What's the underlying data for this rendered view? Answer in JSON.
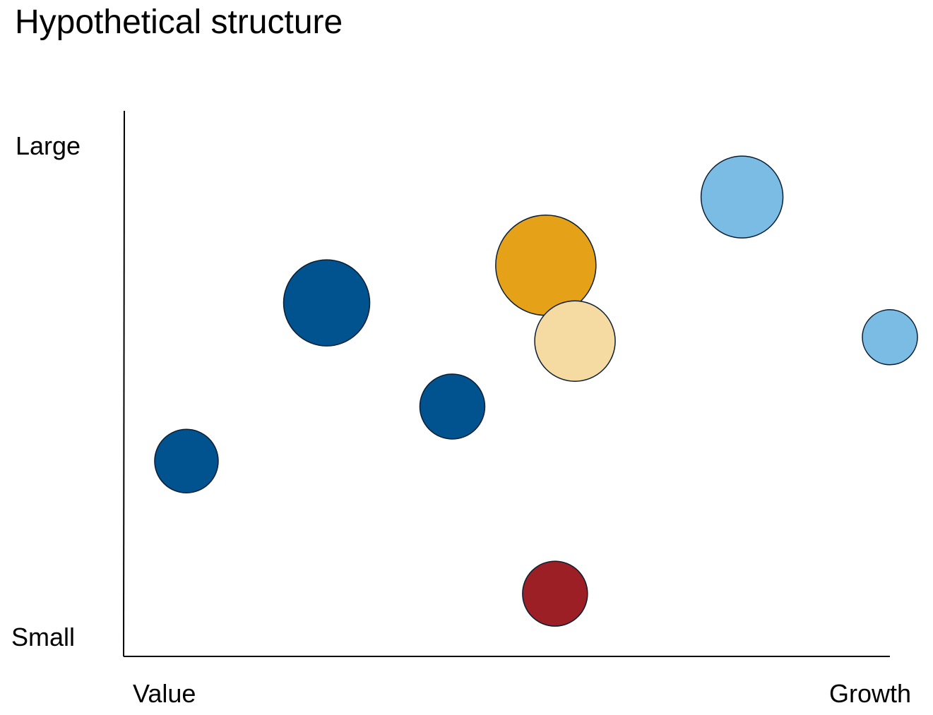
{
  "chart_data": {
    "type": "scatter",
    "subtype": "bubble",
    "title": "Hypothetical structure",
    "xlabel_left": "Value",
    "xlabel_right": "Growth",
    "ylabel_top": "Large",
    "ylabel_bottom": "Small",
    "xlim": [
      0,
      100
    ],
    "ylim": [
      0,
      100
    ],
    "grid": false,
    "legend": "none",
    "colors": {
      "dark_blue": "#00538F",
      "orange": "#E5A118",
      "tan": "#F5DBA1",
      "light_blue": "#7BBCE5",
      "dark_red": "#9B1F24",
      "outline": "#0A1E33"
    },
    "points": [
      {
        "x": 8.2,
        "y": 35.8,
        "size": 45,
        "color": "#00538F"
      },
      {
        "x": 26.5,
        "y": 64.8,
        "size": 61,
        "color": "#00538F"
      },
      {
        "x": 42.9,
        "y": 45.8,
        "size": 46,
        "color": "#00538F"
      },
      {
        "x": 55.1,
        "y": 71.7,
        "size": 71,
        "color": "#E5A118"
      },
      {
        "x": 58.9,
        "y": 57.8,
        "size": 57,
        "color": "#F5DBA1"
      },
      {
        "x": 80.7,
        "y": 84.2,
        "size": 58,
        "color": "#7BBCE5"
      },
      {
        "x": 100,
        "y": 58.5,
        "size": 39,
        "color": "#7BBCE5"
      },
      {
        "x": 56.3,
        "y": 11.5,
        "size": 46,
        "color": "#9B1F24"
      }
    ]
  }
}
